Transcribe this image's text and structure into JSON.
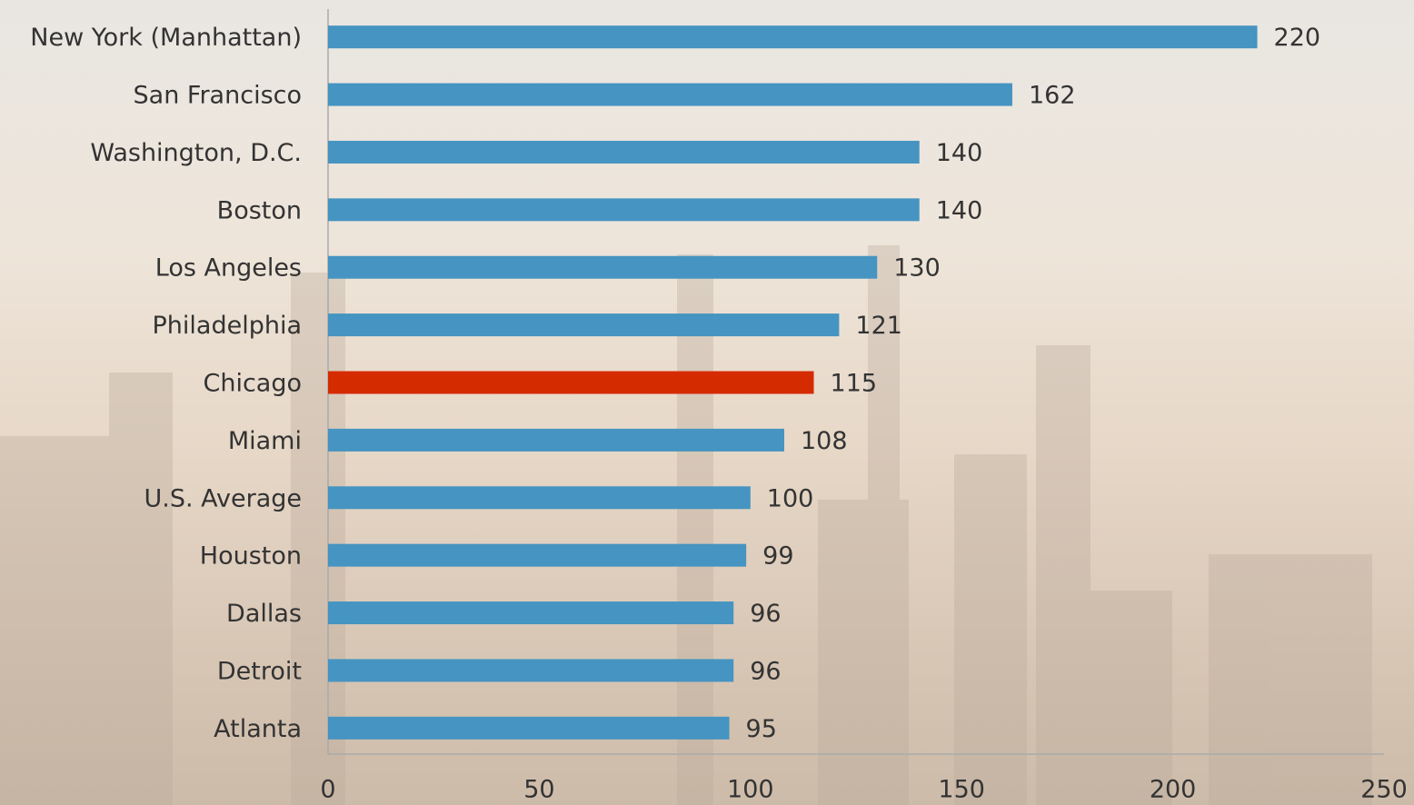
{
  "chart_data": {
    "type": "bar",
    "orientation": "horizontal",
    "categories": [
      "New York (Manhattan)",
      "San Francisco",
      "Washington, D.C.",
      "Boston",
      "Los Angeles",
      "Philadelphia",
      "Chicago",
      "Miami",
      "U.S. Average",
      "Houston",
      "Dallas",
      "Detroit",
      "Atlanta"
    ],
    "values": [
      220,
      162,
      140,
      140,
      130,
      121,
      115,
      108,
      100,
      99,
      96,
      96,
      95
    ],
    "colors": [
      "#4594c1",
      "#4594c1",
      "#4594c1",
      "#4594c1",
      "#4594c1",
      "#4594c1",
      "#d52b00",
      "#4594c1",
      "#4594c1",
      "#4594c1",
      "#4594c1",
      "#4594c1",
      "#4594c1"
    ],
    "xlim": [
      0,
      250
    ],
    "xticks": [
      0,
      50,
      100,
      150,
      200,
      250
    ],
    "grid": false
  }
}
